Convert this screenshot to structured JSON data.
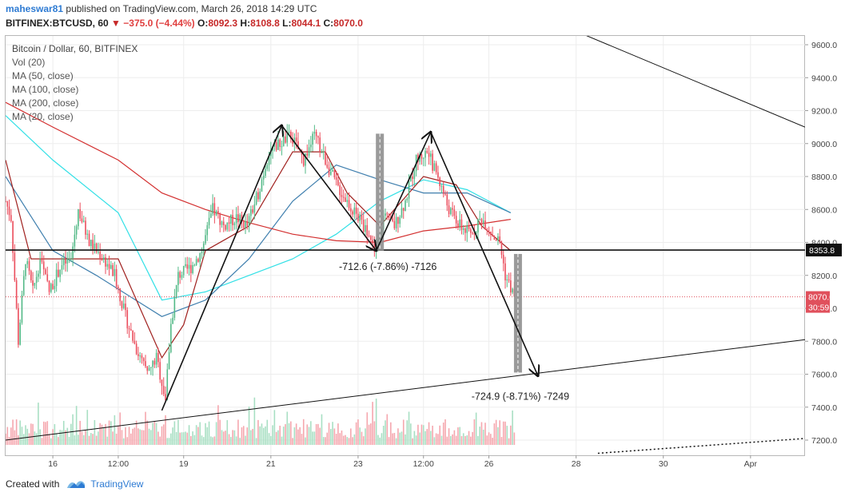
{
  "header": {
    "author": "maheswar81",
    "published_text": "published on TradingView.com, March 26, 2018 14:29 UTC",
    "symbol": "BITFINEX:BTCUSD, 60",
    "change_arrow": "▼",
    "change": "−375.0 (−4.44%)",
    "o_label": "O:",
    "o_value": "8092.3",
    "h_label": "H:",
    "h_value": "8108.8",
    "l_label": "L:",
    "l_value": "8044.1",
    "c_label": "C:",
    "c_value": "8070.0"
  },
  "legend": {
    "title": "Bitcoin / Dollar, 60, BITFINEX",
    "items": [
      "Vol (20)",
      "MA (50, close)",
      "MA (100, close)",
      "MA (200, close)",
      "MA (20, close)"
    ]
  },
  "footer": {
    "created_with": "Created with",
    "brand": "TradingView"
  },
  "colors": {
    "up": "#53b987",
    "down": "#eb4d5c",
    "vol_up": "#a8dfc3",
    "vol_down": "#f5a7ae",
    "ma50": "#3f7fae",
    "ma100": "#32e0e6",
    "ma200": "#d32f2f",
    "ma20": "#a0201e",
    "current_price": "#e0505c",
    "countdown": "#e0505c",
    "level_box": "#111111"
  },
  "chart_data": {
    "type": "candlestick",
    "ylim": [
      7100,
      9700
    ],
    "y_ticks": [
      7200,
      7400,
      7600,
      7800,
      8000,
      8200,
      8400,
      8600,
      8800,
      9000,
      9200,
      9400,
      9600
    ],
    "x_range": [
      "2018-03-14 22:00",
      "2018-04-02 06:00"
    ],
    "x_ticks": [
      {
        "label": "16",
        "t": "2018-03-16 00:00"
      },
      {
        "label": "12:00",
        "t": "2018-03-17 12:00"
      },
      {
        "label": "19",
        "t": "2018-03-19 00:00"
      },
      {
        "label": "21",
        "t": "2018-03-21 00:00"
      },
      {
        "label": "23",
        "t": "2018-03-23 00:00"
      },
      {
        "label": "12:00",
        "t": "2018-03-24 12:00"
      },
      {
        "label": "26",
        "t": "2018-03-26 00:00"
      },
      {
        "label": "28",
        "t": "2018-03-28 00:00"
      },
      {
        "label": "30",
        "t": "2018-03-30 00:00"
      },
      {
        "label": "Apr",
        "t": "2018-04-01 00:00"
      }
    ],
    "price_path": [
      {
        "t": "2018-03-14 22:00",
        "p": 8650
      },
      {
        "t": "2018-03-15 01:00",
        "p": 8550
      },
      {
        "t": "2018-03-15 05:00",
        "p": 7800
      },
      {
        "t": "2018-03-15 09:00",
        "p": 8300
      },
      {
        "t": "2018-03-15 13:00",
        "p": 8100
      },
      {
        "t": "2018-03-15 17:00",
        "p": 8300
      },
      {
        "t": "2018-03-15 22:00",
        "p": 8100
      },
      {
        "t": "2018-03-16 04:00",
        "p": 8250
      },
      {
        "t": "2018-03-16 10:00",
        "p": 8300
      },
      {
        "t": "2018-03-16 14:00",
        "p": 8600
      },
      {
        "t": "2018-03-16 20:00",
        "p": 8400
      },
      {
        "t": "2018-03-17 04:00",
        "p": 8300
      },
      {
        "t": "2018-03-17 10:00",
        "p": 8200
      },
      {
        "t": "2018-03-17 16:00",
        "p": 7950
      },
      {
        "t": "2018-03-17 22:00",
        "p": 7750
      },
      {
        "t": "2018-03-18 04:00",
        "p": 7600
      },
      {
        "t": "2018-03-18 09:00",
        "p": 7700
      },
      {
        "t": "2018-03-18 14:00",
        "p": 7450
      },
      {
        "t": "2018-03-18 17:00",
        "p": 7900
      },
      {
        "t": "2018-03-18 21:00",
        "p": 8200
      },
      {
        "t": "2018-03-19 04:00",
        "p": 8250
      },
      {
        "t": "2018-03-19 10:00",
        "p": 8350
      },
      {
        "t": "2018-03-19 16:00",
        "p": 8600
      },
      {
        "t": "2018-03-19 22:00",
        "p": 8500
      },
      {
        "t": "2018-03-20 05:00",
        "p": 8550
      },
      {
        "t": "2018-03-20 11:00",
        "p": 8500
      },
      {
        "t": "2018-03-20 17:00",
        "p": 8700
      },
      {
        "t": "2018-03-20 23:00",
        "p": 8950
      },
      {
        "t": "2018-03-21 05:00",
        "p": 9000
      },
      {
        "t": "2018-03-21 11:00",
        "p": 9050
      },
      {
        "t": "2018-03-21 18:00",
        "p": 8900
      },
      {
        "t": "2018-03-22 00:00",
        "p": 9050
      },
      {
        "t": "2018-03-22 06:00",
        "p": 8900
      },
      {
        "t": "2018-03-22 12:00",
        "p": 8750
      },
      {
        "t": "2018-03-22 18:00",
        "p": 8650
      },
      {
        "t": "2018-03-23 00:00",
        "p": 8550
      },
      {
        "t": "2018-03-23 06:00",
        "p": 8450
      },
      {
        "t": "2018-03-23 09:00",
        "p": 8350
      },
      {
        "t": "2018-03-23 14:00",
        "p": 8550
      },
      {
        "t": "2018-03-23 20:00",
        "p": 8500
      },
      {
        "t": "2018-03-24 02:00",
        "p": 8650
      },
      {
        "t": "2018-03-24 08:00",
        "p": 8900
      },
      {
        "t": "2018-03-24 14:00",
        "p": 8950
      },
      {
        "t": "2018-03-24 20:00",
        "p": 8800
      },
      {
        "t": "2018-03-25 02:00",
        "p": 8600
      },
      {
        "t": "2018-03-25 08:00",
        "p": 8500
      },
      {
        "t": "2018-03-25 14:00",
        "p": 8450
      },
      {
        "t": "2018-03-25 20:00",
        "p": 8550
      },
      {
        "t": "2018-03-26 02:00",
        "p": 8450
      },
      {
        "t": "2018-03-26 06:00",
        "p": 8400
      },
      {
        "t": "2018-03-26 09:00",
        "p": 8200
      },
      {
        "t": "2018-03-26 14:00",
        "p": 8070
      }
    ],
    "ma50": [
      {
        "t": "2018-03-14 22:00",
        "p": 8800
      },
      {
        "t": "2018-03-16 00:00",
        "p": 8350
      },
      {
        "t": "2018-03-17 00:00",
        "p": 8200
      },
      {
        "t": "2018-03-18 12:00",
        "p": 7950
      },
      {
        "t": "2018-03-19 12:00",
        "p": 8050
      },
      {
        "t": "2018-03-20 12:00",
        "p": 8300
      },
      {
        "t": "2018-03-21 12:00",
        "p": 8650
      },
      {
        "t": "2018-03-22 12:00",
        "p": 8870
      },
      {
        "t": "2018-03-23 12:00",
        "p": 8780
      },
      {
        "t": "2018-03-24 12:00",
        "p": 8700
      },
      {
        "t": "2018-03-25 12:00",
        "p": 8700
      },
      {
        "t": "2018-03-26 12:00",
        "p": 8580
      }
    ],
    "ma100": [
      {
        "t": "2018-03-14 22:00",
        "p": 9170
      },
      {
        "t": "2018-03-16 00:00",
        "p": 8900
      },
      {
        "t": "2018-03-17 12:00",
        "p": 8580
      },
      {
        "t": "2018-03-18 12:00",
        "p": 8050
      },
      {
        "t": "2018-03-19 12:00",
        "p": 8100
      },
      {
        "t": "2018-03-20 12:00",
        "p": 8200
      },
      {
        "t": "2018-03-21 12:00",
        "p": 8300
      },
      {
        "t": "2018-03-22 12:00",
        "p": 8450
      },
      {
        "t": "2018-03-23 12:00",
        "p": 8650
      },
      {
        "t": "2018-03-24 12:00",
        "p": 8780
      },
      {
        "t": "2018-03-25 12:00",
        "p": 8720
      },
      {
        "t": "2018-03-26 12:00",
        "p": 8580
      }
    ],
    "ma200": [
      {
        "t": "2018-03-14 22:00",
        "p": 9250
      },
      {
        "t": "2018-03-16 00:00",
        "p": 9100
      },
      {
        "t": "2018-03-17 12:00",
        "p": 8900
      },
      {
        "t": "2018-03-18 12:00",
        "p": 8700
      },
      {
        "t": "2018-03-19 12:00",
        "p": 8600
      },
      {
        "t": "2018-03-20 12:00",
        "p": 8520
      },
      {
        "t": "2018-03-21 12:00",
        "p": 8450
      },
      {
        "t": "2018-03-22 12:00",
        "p": 8410
      },
      {
        "t": "2018-03-23 12:00",
        "p": 8400
      },
      {
        "t": "2018-03-24 12:00",
        "p": 8470
      },
      {
        "t": "2018-03-25 12:00",
        "p": 8500
      },
      {
        "t": "2018-03-26 12:00",
        "p": 8540
      }
    ],
    "ma20": [
      {
        "t": "2018-03-14 22:00",
        "p": 8900
      },
      {
        "t": "2018-03-15 12:00",
        "p": 8300
      },
      {
        "t": "2018-03-16 12:00",
        "p": 8300
      },
      {
        "t": "2018-03-17 12:00",
        "p": 8300
      },
      {
        "t": "2018-03-18 12:00",
        "p": 7700
      },
      {
        "t": "2018-03-19 00:00",
        "p": 7900
      },
      {
        "t": "2018-03-19 12:00",
        "p": 8350
      },
      {
        "t": "2018-03-20 12:00",
        "p": 8500
      },
      {
        "t": "2018-03-21 12:00",
        "p": 8950
      },
      {
        "t": "2018-03-22 06:00",
        "p": 8950
      },
      {
        "t": "2018-03-22 18:00",
        "p": 8700
      },
      {
        "t": "2018-03-23 12:00",
        "p": 8500
      },
      {
        "t": "2018-03-24 12:00",
        "p": 8800
      },
      {
        "t": "2018-03-25 06:00",
        "p": 8750
      },
      {
        "t": "2018-03-25 20:00",
        "p": 8500
      },
      {
        "t": "2018-03-26 12:00",
        "p": 8350
      }
    ],
    "volume_ylim": [
      0,
      60000
    ],
    "volume_max_approx": 55000,
    "horizontal_level": 8353.8,
    "current_price": 8070.0,
    "countdown": "30:59",
    "trendlines": [
      {
        "from": {
          "t": "2018-03-14 22:00",
          "p": 7200
        },
        "to": {
          "t": "2018-04-02 06:00",
          "p": 7810
        }
      },
      {
        "from": {
          "t": "2018-03-27 20:00",
          "p": 9700
        },
        "to": {
          "t": "2018-04-02 06:00",
          "p": 9100
        }
      },
      {
        "from": {
          "t": "2018-03-28 12:00",
          "p": 7120
        },
        "to": {
          "t": "2018-04-02 06:00",
          "p": 7210
        },
        "style": "dotted"
      }
    ],
    "pattern_path": [
      {
        "t": "2018-03-18 12:00",
        "p": 7380
      },
      {
        "t": "2018-03-21 06:00",
        "p": 9110
      },
      {
        "t": "2018-03-23 10:00",
        "p": 8350
      },
      {
        "t": "2018-03-24 16:00",
        "p": 9070
      },
      {
        "t": "2018-03-27 03:00",
        "p": 7590
      }
    ],
    "projections": [
      {
        "t": "2018-03-23 12:00",
        "top": 9060,
        "bottom": 8350,
        "label": "-712.6 (-7.86%) -7126"
      },
      {
        "t": "2018-03-26 16:00",
        "top": 8330,
        "bottom": 7610,
        "label": "-724.9 (-8.71%) -7249"
      }
    ]
  }
}
